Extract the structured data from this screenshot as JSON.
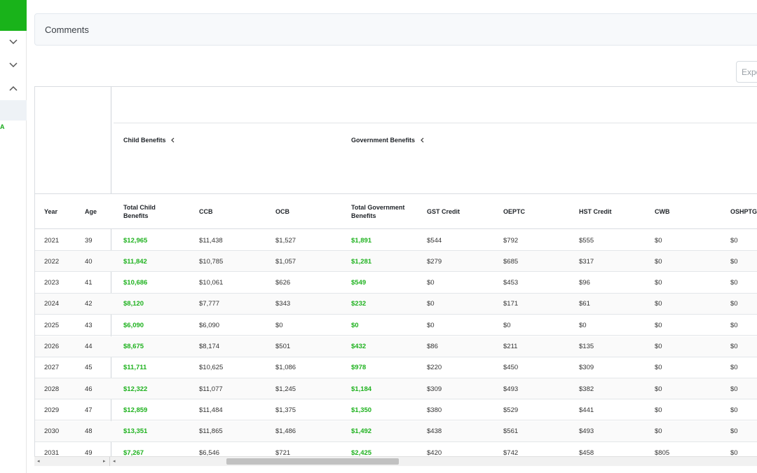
{
  "sidebar": {
    "brand_color": "#19b31a",
    "chevrons": [
      "chevron-down-icon",
      "chevron-down-icon",
      "chevron-up-icon"
    ],
    "green_letter": "A"
  },
  "comments": {
    "label": "Comments"
  },
  "export": {
    "label": "Expo"
  },
  "groups": {
    "child": "Child Benefits",
    "government": "Government Benefits"
  },
  "columns": {
    "year": "Year",
    "age": "Age",
    "total_child": "Total Child Benefits",
    "ccb": "CCB",
    "ocb": "OCB",
    "total_gov": "Total Government Benefits",
    "gst": "GST Credit",
    "oeptc": "OEPTC",
    "hst": "HST Credit",
    "cwb": "CWB",
    "oshptg": "OSHPTG"
  },
  "rows": [
    {
      "year": "2021",
      "age": "39",
      "total_child": "$12,965",
      "ccb": "$11,438",
      "ocb": "$1,527",
      "total_gov": "$1,891",
      "gst": "$544",
      "oeptc": "$792",
      "hst": "$555",
      "cwb": "$0",
      "oshptg": "$0"
    },
    {
      "year": "2022",
      "age": "40",
      "total_child": "$11,842",
      "ccb": "$10,785",
      "ocb": "$1,057",
      "total_gov": "$1,281",
      "gst": "$279",
      "oeptc": "$685",
      "hst": "$317",
      "cwb": "$0",
      "oshptg": "$0"
    },
    {
      "year": "2023",
      "age": "41",
      "total_child": "$10,686",
      "ccb": "$10,061",
      "ocb": "$626",
      "total_gov": "$549",
      "gst": "$0",
      "oeptc": "$453",
      "hst": "$96",
      "cwb": "$0",
      "oshptg": "$0"
    },
    {
      "year": "2024",
      "age": "42",
      "total_child": "$8,120",
      "ccb": "$7,777",
      "ocb": "$343",
      "total_gov": "$232",
      "gst": "$0",
      "oeptc": "$171",
      "hst": "$61",
      "cwb": "$0",
      "oshptg": "$0"
    },
    {
      "year": "2025",
      "age": "43",
      "total_child": "$6,090",
      "ccb": "$6,090",
      "ocb": "$0",
      "total_gov": "$0",
      "gst": "$0",
      "oeptc": "$0",
      "hst": "$0",
      "cwb": "$0",
      "oshptg": "$0"
    },
    {
      "year": "2026",
      "age": "44",
      "total_child": "$8,675",
      "ccb": "$8,174",
      "ocb": "$501",
      "total_gov": "$432",
      "gst": "$86",
      "oeptc": "$211",
      "hst": "$135",
      "cwb": "$0",
      "oshptg": "$0"
    },
    {
      "year": "2027",
      "age": "45",
      "total_child": "$11,711",
      "ccb": "$10,625",
      "ocb": "$1,086",
      "total_gov": "$978",
      "gst": "$220",
      "oeptc": "$450",
      "hst": "$309",
      "cwb": "$0",
      "oshptg": "$0"
    },
    {
      "year": "2028",
      "age": "46",
      "total_child": "$12,322",
      "ccb": "$11,077",
      "ocb": "$1,245",
      "total_gov": "$1,184",
      "gst": "$309",
      "oeptc": "$493",
      "hst": "$382",
      "cwb": "$0",
      "oshptg": "$0"
    },
    {
      "year": "2029",
      "age": "47",
      "total_child": "$12,859",
      "ccb": "$11,484",
      "ocb": "$1,375",
      "total_gov": "$1,350",
      "gst": "$380",
      "oeptc": "$529",
      "hst": "$441",
      "cwb": "$0",
      "oshptg": "$0"
    },
    {
      "year": "2030",
      "age": "48",
      "total_child": "$13,351",
      "ccb": "$11,865",
      "ocb": "$1,486",
      "total_gov": "$1,492",
      "gst": "$438",
      "oeptc": "$561",
      "hst": "$493",
      "cwb": "$0",
      "oshptg": "$0"
    },
    {
      "year": "2031",
      "age": "49",
      "total_child": "$7,267",
      "ccb": "$6,546",
      "ocb": "$721",
      "total_gov": "$2,425",
      "gst": "$420",
      "oeptc": "$742",
      "hst": "$458",
      "cwb": "$805",
      "oshptg": "$0"
    }
  ],
  "colors": {
    "green_value": "#1fb21f"
  }
}
